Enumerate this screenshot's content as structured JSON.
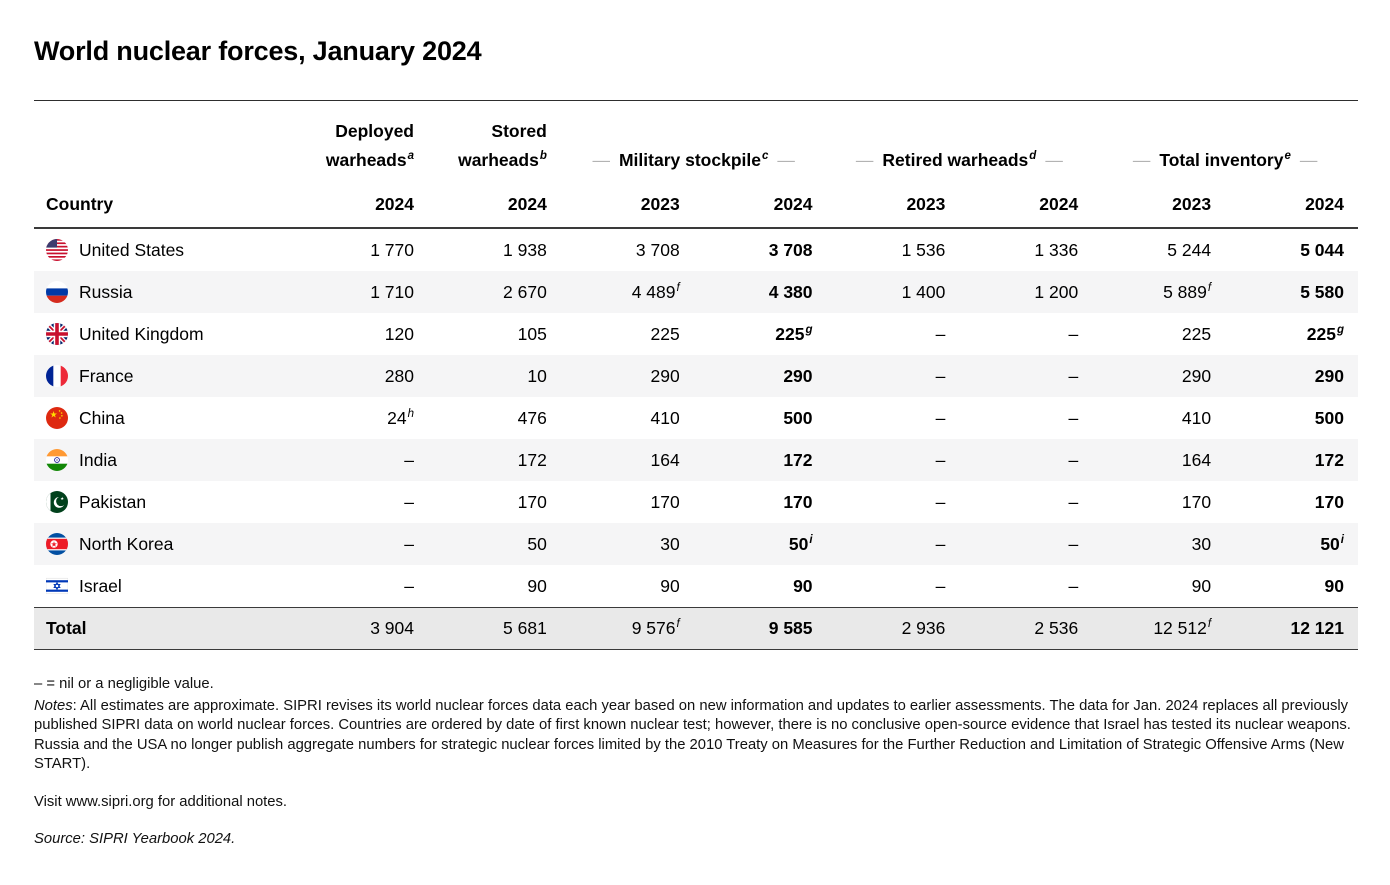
{
  "title": "World nuclear forces, January 2024",
  "table": {
    "country_header": "Country",
    "group_headers": [
      {
        "label": "Deployed warheads",
        "sup": "a"
      },
      {
        "label": "Stored warheads",
        "sup": "b"
      },
      {
        "label": "Military stockpile",
        "sup": "c"
      },
      {
        "label": "Retired warheads",
        "sup": "d"
      },
      {
        "label": "Total inventory",
        "sup": "e"
      }
    ],
    "dash": "—",
    "year_headers": [
      "2024",
      "2024",
      "2023",
      "2024",
      "2023",
      "2024",
      "2023",
      "2024"
    ],
    "rows": [
      {
        "country": "United States",
        "flag": "us",
        "values": [
          {
            "v": "1 770"
          },
          {
            "v": "1 938"
          },
          {
            "v": "3 708"
          },
          {
            "v": "3 708"
          },
          {
            "v": "1 536"
          },
          {
            "v": "1 336"
          },
          {
            "v": "5 244"
          },
          {
            "v": "5 044"
          }
        ]
      },
      {
        "country": "Russia",
        "flag": "ru",
        "values": [
          {
            "v": "1 710"
          },
          {
            "v": "2 670"
          },
          {
            "v": "4 489",
            "sup": "f"
          },
          {
            "v": "4 380"
          },
          {
            "v": "1 400"
          },
          {
            "v": "1 200"
          },
          {
            "v": "5 889",
            "sup": "f"
          },
          {
            "v": "5 580"
          }
        ]
      },
      {
        "country": "United Kingdom",
        "flag": "gb",
        "values": [
          {
            "v": "120"
          },
          {
            "v": "105"
          },
          {
            "v": "225"
          },
          {
            "v": "225",
            "sup": "g"
          },
          {
            "v": "–"
          },
          {
            "v": "–"
          },
          {
            "v": "225"
          },
          {
            "v": "225",
            "sup": "g"
          }
        ]
      },
      {
        "country": "France",
        "flag": "fr",
        "values": [
          {
            "v": "280"
          },
          {
            "v": "10"
          },
          {
            "v": "290"
          },
          {
            "v": "290"
          },
          {
            "v": "–"
          },
          {
            "v": "–"
          },
          {
            "v": "290"
          },
          {
            "v": "290"
          }
        ]
      },
      {
        "country": "China",
        "flag": "cn",
        "values": [
          {
            "v": "24",
            "sup": "h"
          },
          {
            "v": "476"
          },
          {
            "v": "410"
          },
          {
            "v": "500"
          },
          {
            "v": "–"
          },
          {
            "v": "–"
          },
          {
            "v": "410"
          },
          {
            "v": "500"
          }
        ]
      },
      {
        "country": "India",
        "flag": "in",
        "values": [
          {
            "v": "–"
          },
          {
            "v": "172"
          },
          {
            "v": "164"
          },
          {
            "v": "172"
          },
          {
            "v": "–"
          },
          {
            "v": "–"
          },
          {
            "v": "164"
          },
          {
            "v": "172"
          }
        ]
      },
      {
        "country": "Pakistan",
        "flag": "pk",
        "values": [
          {
            "v": "–"
          },
          {
            "v": "170"
          },
          {
            "v": "170"
          },
          {
            "v": "170"
          },
          {
            "v": "–"
          },
          {
            "v": "–"
          },
          {
            "v": "170"
          },
          {
            "v": "170"
          }
        ]
      },
      {
        "country": "North Korea",
        "flag": "kp",
        "values": [
          {
            "v": "–"
          },
          {
            "v": "50"
          },
          {
            "v": "30"
          },
          {
            "v": "50",
            "sup": "i"
          },
          {
            "v": "–"
          },
          {
            "v": "–"
          },
          {
            "v": "30"
          },
          {
            "v": "50",
            "sup": "i"
          }
        ]
      },
      {
        "country": "Israel",
        "flag": "il",
        "values": [
          {
            "v": "–"
          },
          {
            "v": "90"
          },
          {
            "v": "90"
          },
          {
            "v": "90"
          },
          {
            "v": "–"
          },
          {
            "v": "–"
          },
          {
            "v": "90"
          },
          {
            "v": "90"
          }
        ]
      }
    ],
    "total": {
      "label": "Total",
      "values": [
        {
          "v": "3 904"
        },
        {
          "v": "5 681"
        },
        {
          "v": "9 576",
          "sup": "f"
        },
        {
          "v": "9 585"
        },
        {
          "v": "2 936"
        },
        {
          "v": "2 536"
        },
        {
          "v": "12 512",
          "sup": "f"
        },
        {
          "v": "12 121"
        }
      ]
    }
  },
  "footnotes": {
    "nil_line": "– = nil or a negligible value.",
    "notes_label": "Notes",
    "notes_text": ": All estimates are approximate. SIPRI revises its world nuclear forces data each year based on new information and updates to earlier assessments. The data for Jan. 2024 replaces all previously published SIPRI data on world nuclear forces. Countries are ordered by date of first known nuclear test; however, there is no conclusive open-source evidence that Israel has tested its nuclear weapons. Russia and the USA no longer publish aggregate numbers for strategic nuclear forces limited by the 2010 Treaty on Measures for the Further Reduction and Limitation of Strategic Offensive Arms (New START).",
    "visit_line": "Visit www.sipri.org for additional notes.",
    "source_line": "Source: SIPRI Yearbook 2024."
  },
  "colors": {
    "row_stripe": "#f5f5f6",
    "total_row_bg": "#e9e9e9",
    "rule_dark": "#3a3a3a",
    "dash_gray": "#b3b3b3"
  },
  "chart_data": {
    "type": "table",
    "title": "World nuclear forces, January 2024",
    "columns": [
      "Country",
      "Deployed warheads 2024",
      "Stored warheads 2024",
      "Military stockpile 2023",
      "Military stockpile 2024",
      "Retired warheads 2023",
      "Retired warheads 2024",
      "Total inventory 2023",
      "Total inventory 2024"
    ],
    "rows": [
      [
        "United States",
        "1 770",
        "1 938",
        "3 708",
        "3 708",
        "1 536",
        "1 336",
        "5 244",
        "5 044"
      ],
      [
        "Russia",
        "1 710",
        "2 670",
        "4 489^f",
        "4 380",
        "1 400",
        "1 200",
        "5 889^f",
        "5 580"
      ],
      [
        "United Kingdom",
        "120",
        "105",
        "225",
        "225^g",
        "–",
        "–",
        "225",
        "225^g"
      ],
      [
        "France",
        "280",
        "10",
        "290",
        "290",
        "–",
        "–",
        "290",
        "290"
      ],
      [
        "China",
        "24^h",
        "476",
        "410",
        "500",
        "–",
        "–",
        "410",
        "500"
      ],
      [
        "India",
        "–",
        "172",
        "164",
        "172",
        "–",
        "–",
        "164",
        "172"
      ],
      [
        "Pakistan",
        "–",
        "170",
        "170",
        "170",
        "–",
        "–",
        "170",
        "170"
      ],
      [
        "North Korea",
        "–",
        "50",
        "30",
        "50^i",
        "–",
        "–",
        "30",
        "50^i"
      ],
      [
        "Israel",
        "–",
        "90",
        "90",
        "90",
        "–",
        "–",
        "90",
        "90"
      ],
      [
        "Total",
        "3 904",
        "5 681",
        "9 576^f",
        "9 585",
        "2 936",
        "2 536",
        "12 512^f",
        "12 121"
      ]
    ],
    "footnote_markers": [
      "a",
      "b",
      "c",
      "d",
      "e",
      "f",
      "g",
      "h",
      "i"
    ]
  }
}
